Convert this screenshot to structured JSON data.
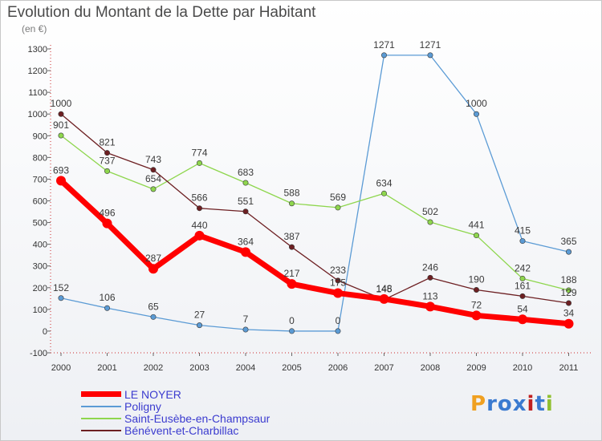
{
  "title": "Evolution du Montant de la Dette par Habitant",
  "subtitle": "(en €)",
  "logo_text": "Proxiti",
  "chart_data": {
    "type": "line",
    "title": "Evolution du Montant de la Dette par Habitant",
    "ylabel": "(en €)",
    "xlabel": "",
    "categories": [
      "2000",
      "2001",
      "2002",
      "2003",
      "2004",
      "2005",
      "2006",
      "2007",
      "2008",
      "2009",
      "2010",
      "2011"
    ],
    "ylim": [
      -100,
      1300
    ],
    "yticks": [
      -100,
      0,
      100,
      200,
      300,
      400,
      500,
      600,
      700,
      800,
      900,
      1000,
      1100,
      1200,
      1300
    ],
    "grid": false,
    "legend_position": "bottom-left",
    "series": [
      {
        "name": "Poligny",
        "color": "#5b9bd5",
        "values": [
          152,
          106,
          65,
          27,
          7,
          0,
          0,
          1271,
          1271,
          1000,
          415,
          365
        ]
      },
      {
        "name": "Saint-Eusèbe-en-Champsaur",
        "color": "#8ed64d",
        "values": [
          901,
          737,
          654,
          774,
          683,
          588,
          569,
          634,
          502,
          441,
          242,
          188
        ]
      },
      {
        "name": "Bénévent-et-Charbillac",
        "color": "#6d1f22",
        "values": [
          1000,
          821,
          743,
          566,
          551,
          387,
          233,
          145,
          246,
          190,
          161,
          129
        ]
      },
      {
        "name": "LE NOYER",
        "color": "#ff0000",
        "values": [
          693,
          496,
          287,
          440,
          364,
          217,
          175,
          148,
          113,
          72,
          54,
          34
        ]
      }
    ]
  }
}
